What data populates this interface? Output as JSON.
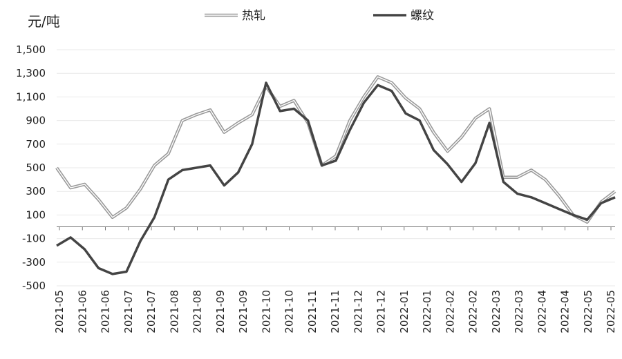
{
  "chart_data": {
    "type": "line",
    "unit": "元/吨",
    "ylim": [
      -500,
      1500
    ],
    "yticks": [
      1500,
      1300,
      1100,
      900,
      700,
      500,
      300,
      100,
      -100,
      -300,
      -500
    ],
    "ytick_labels": [
      "1,500",
      "1,300",
      "1,100",
      "900",
      "700",
      "500",
      "300",
      "100",
      "-100",
      "-300",
      "-500"
    ],
    "x_tick_labels": [
      "2021-05",
      "2021-06",
      "2021-06",
      "2021-07",
      "2021-07",
      "2021-08",
      "2021-08",
      "2021-09",
      "2021-09",
      "2021-10",
      "2021-10",
      "2021-11",
      "2021-11",
      "2021-12",
      "2021-12",
      "2022-01",
      "2022-01",
      "2022-02",
      "2022-02",
      "2022-03",
      "2022-03",
      "2022-04",
      "2022-04",
      "2022-05",
      "2022-05"
    ],
    "grid": true,
    "legend_position": "top",
    "series": [
      {
        "name": "热轧",
        "color": "#999999",
        "style": "double",
        "values": [
          500,
          330,
          360,
          230,
          80,
          160,
          320,
          520,
          620,
          900,
          950,
          990,
          800,
          880,
          950,
          1190,
          1020,
          1070,
          880,
          520,
          600,
          900,
          1100,
          1270,
          1220,
          1090,
          1000,
          800,
          640,
          760,
          920,
          1000,
          420,
          420,
          480,
          400,
          260,
          100,
          40,
          210,
          300
        ]
      },
      {
        "name": "螺纹",
        "color": "#444444",
        "style": "solid",
        "values": [
          -160,
          -90,
          -190,
          -350,
          -400,
          -380,
          -120,
          80,
          400,
          480,
          500,
          520,
          350,
          460,
          700,
          1220,
          980,
          1000,
          900,
          520,
          560,
          820,
          1050,
          1200,
          1150,
          960,
          900,
          650,
          530,
          380,
          540,
          880,
          380,
          280,
          250,
          200,
          150,
          100,
          60,
          200,
          250
        ]
      }
    ]
  }
}
